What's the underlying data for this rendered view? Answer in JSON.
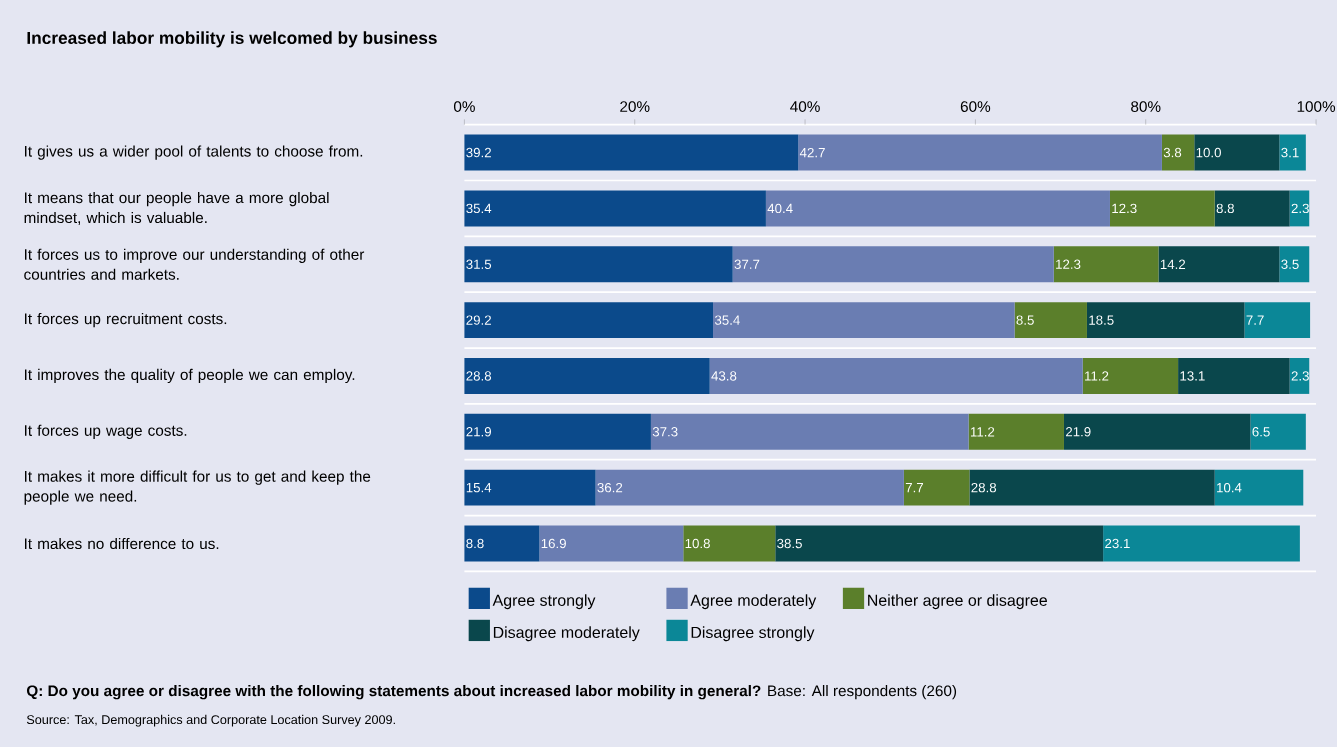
{
  "chart_data": {
    "type": "bar",
    "orientation": "horizontal",
    "stacked": true,
    "title": "Increased labor mobility is welcomed by business",
    "categories": [
      "It gives us a wider pool of talents to choose from.",
      "It means that our people have a more global mindset, which is valuable.",
      "It forces us to improve our understanding of other countries and markets.",
      "It forces up recruitment costs.",
      "It improves the quality of people we can employ.",
      "It forces up wage costs.",
      "It makes it more difficult for us to get and keep the people we need.",
      "It makes no difference to us."
    ],
    "series": [
      {
        "name": "Agree strongly",
        "color": "#0b4a8b",
        "values": [
          39.2,
          35.4,
          31.5,
          29.2,
          28.8,
          21.9,
          15.4,
          8.8
        ],
        "value_labels": [
          "39.2",
          "35.4",
          "31.5",
          "29.2",
          "28.8",
          "21.9",
          "15.4",
          "8.8"
        ]
      },
      {
        "name": "Agree moderately",
        "color": "#6a7db2",
        "values": [
          42.7,
          40.4,
          37.7,
          35.4,
          43.8,
          37.3,
          36.2,
          16.9
        ],
        "value_labels": [
          "42.7",
          "40.4",
          "37.7",
          "35.4",
          "43.8",
          "37.3",
          "36.2",
          "16.9"
        ]
      },
      {
        "name": "Neither agree or disagree",
        "color": "#5b7f2b",
        "values": [
          3.8,
          12.3,
          12.3,
          8.5,
          11.2,
          11.2,
          7.7,
          10.8
        ],
        "value_labels": [
          "3.8",
          "12.3",
          "12.3",
          "8.5",
          "11.2",
          "11.2",
          "7.7",
          "10.8"
        ]
      },
      {
        "name": "Disagree moderately",
        "color": "#0a474c",
        "values": [
          10,
          8.8,
          14.2,
          18.5,
          13.1,
          21.9,
          28.8,
          38.5
        ],
        "value_labels": [
          "10.0",
          "8.8",
          "14.2",
          "18.5",
          "13.1",
          "21.9",
          "28.8",
          "38.5"
        ]
      },
      {
        "name": "Disagree strongly",
        "color": "#0b8797",
        "values": [
          3.1,
          2.3,
          3.5,
          7.7,
          2.3,
          6.5,
          10.4,
          23.1
        ],
        "value_labels": [
          "3.1",
          "2.3",
          "3.5",
          "7.7",
          "2.3",
          "6.5",
          "10.4",
          "23.1"
        ]
      }
    ],
    "xlim": [
      0,
      100
    ],
    "xticks": [
      {
        "value": 0,
        "label": "0%"
      },
      {
        "value": 20,
        "label": "20%"
      },
      {
        "value": 40,
        "label": "40%"
      },
      {
        "value": 60,
        "label": "60%"
      },
      {
        "value": 80,
        "label": "80%"
      },
      {
        "value": 100,
        "label": "100%"
      }
    ],
    "grid": "y",
    "legend": "bottom",
    "annotations": [
      "**Q: Do you agree or disagree with the following statements about increased labor mobility in general?** Base: All respondents (260)",
      "Source: Tax, Demographics and Corporate Location Survey 2009."
    ]
  }
}
